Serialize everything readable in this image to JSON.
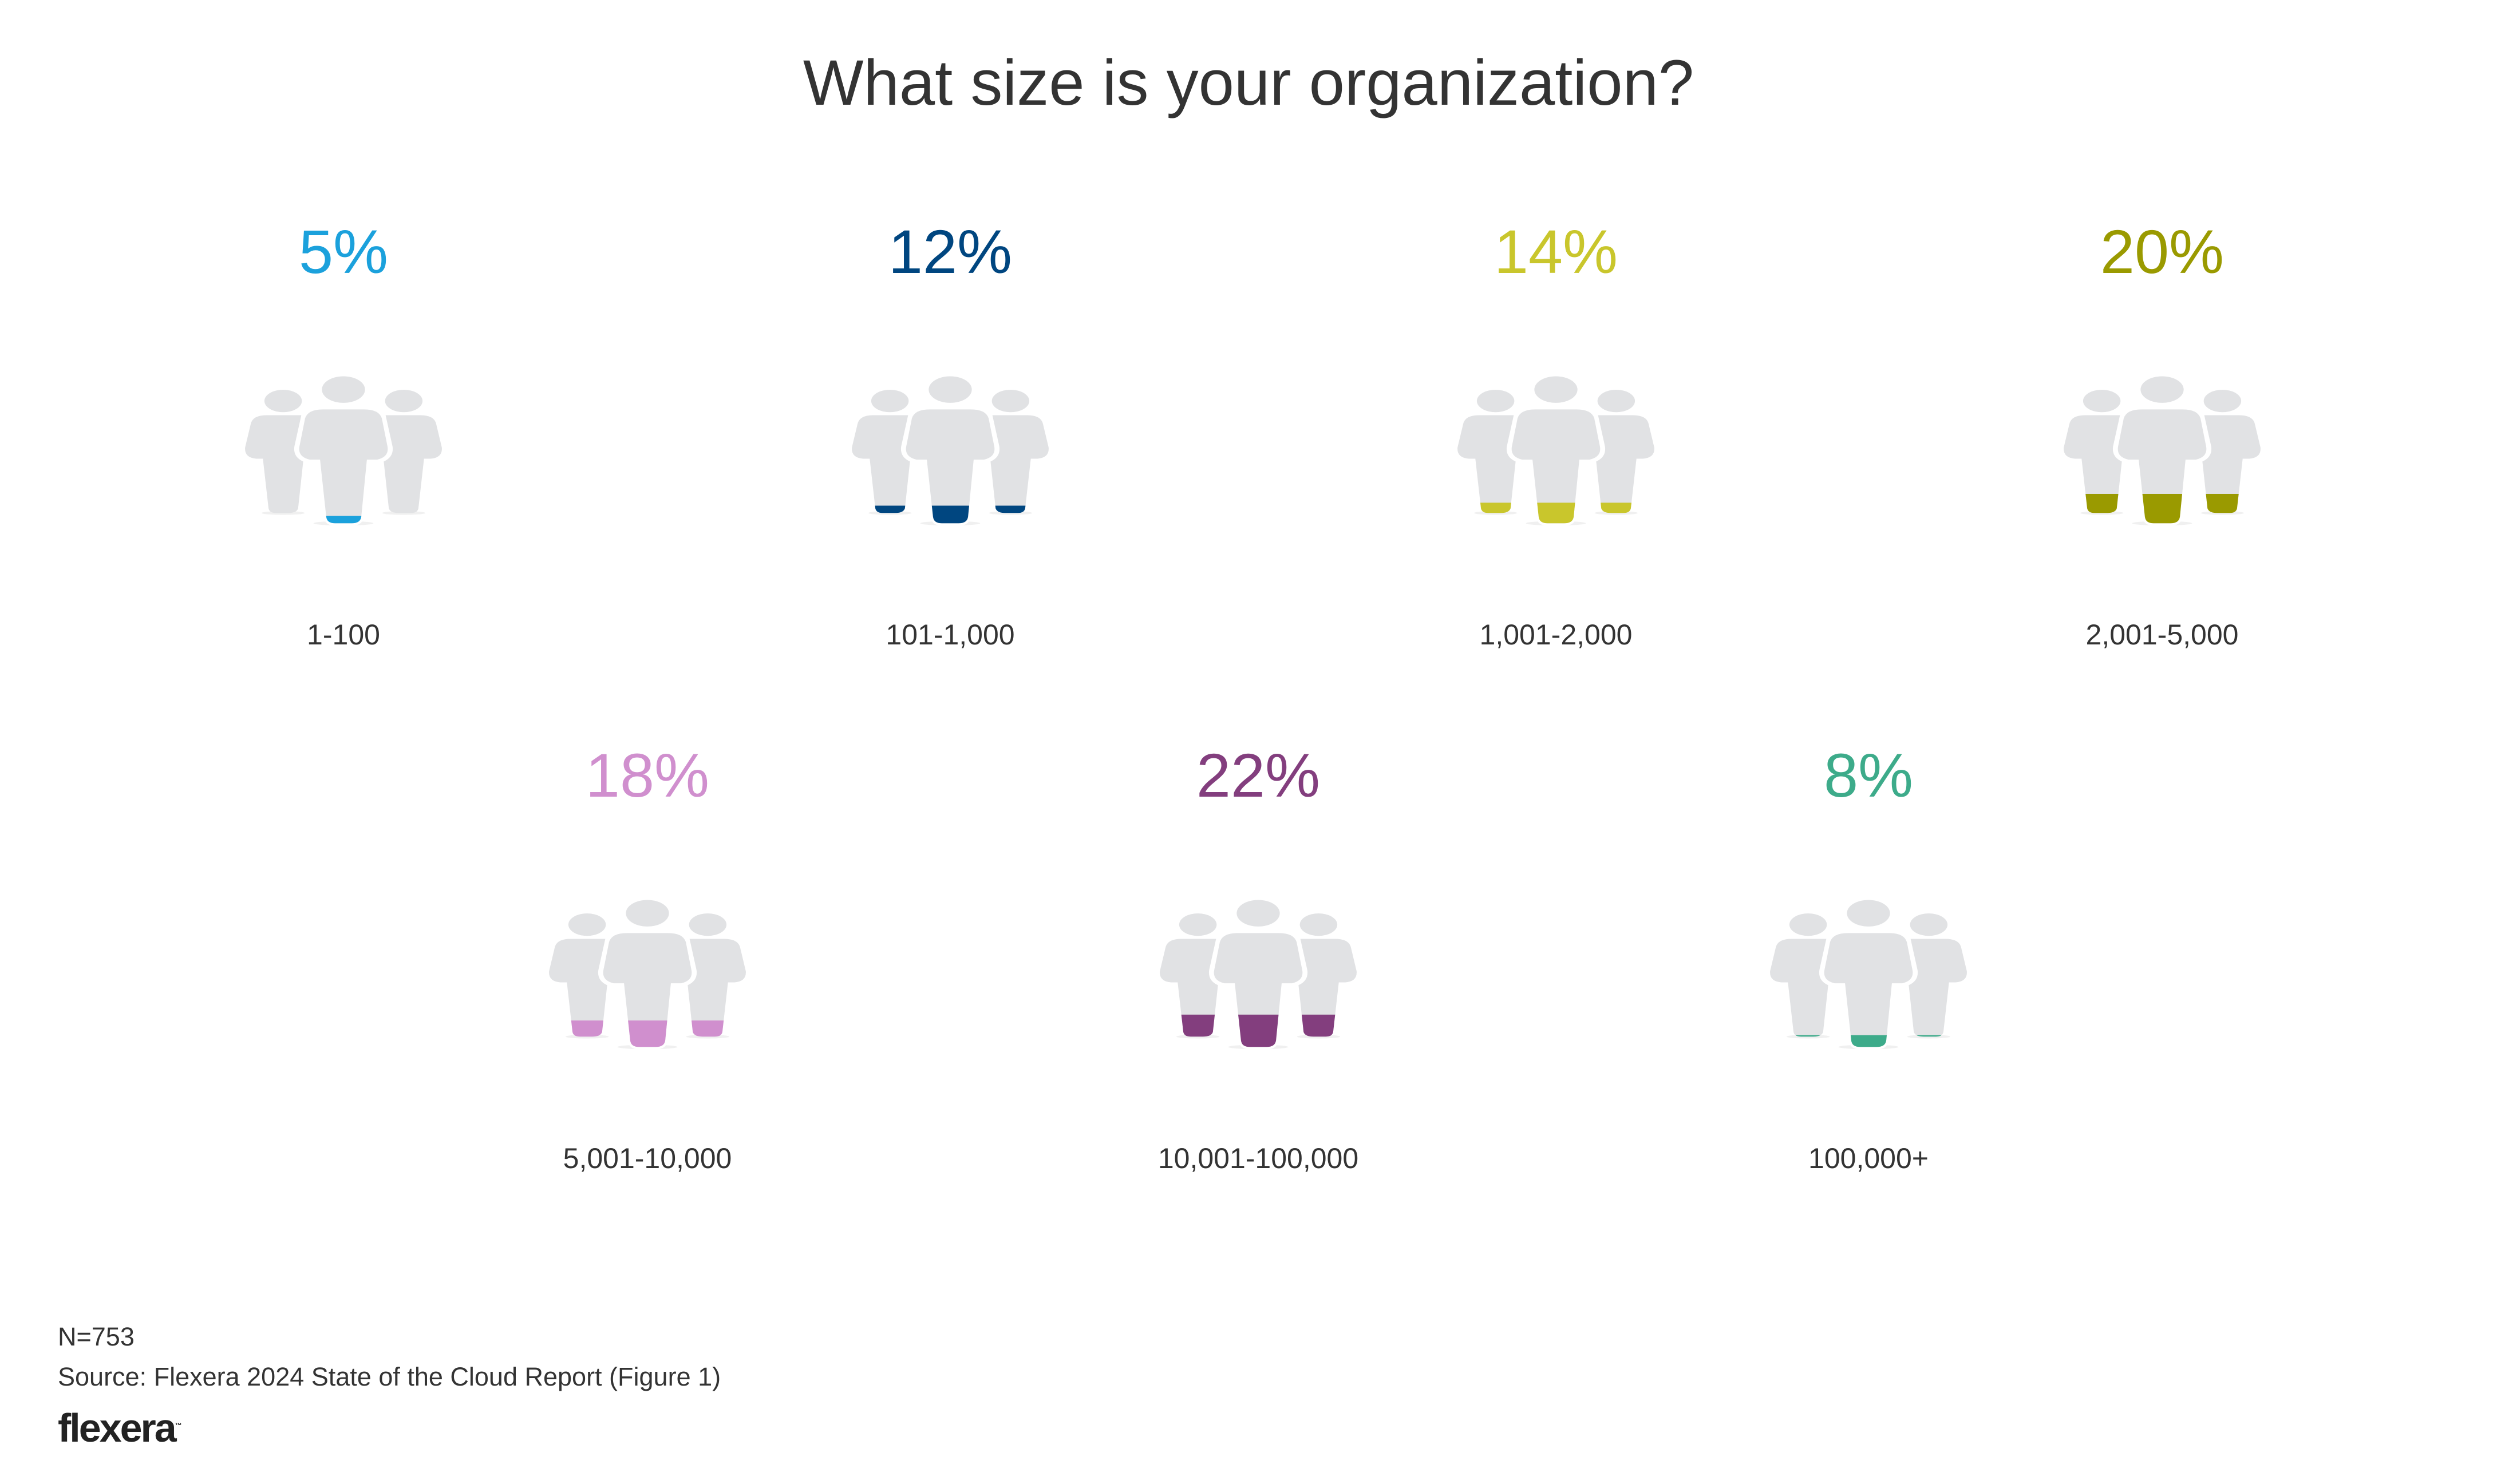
{
  "chart_data": {
    "type": "pictograph",
    "title": "What size is your organization?",
    "categories": [
      "1-100",
      "101-1,000",
      "1,001-2,000",
      "2,001-5,000",
      "5,001-10,000",
      "10,001-100,000",
      "100,000+"
    ],
    "values": [
      5,
      12,
      14,
      20,
      18,
      22,
      8
    ],
    "value_labels": [
      "5%",
      "12%",
      "14%",
      "20%",
      "18%",
      "22%",
      "8%"
    ],
    "colors": [
      "#1BA1DC",
      "#004680",
      "#C9C62C",
      "#9A9A00",
      "#D08FCE",
      "#833E7E",
      "#3DAB8A"
    ],
    "unit": "%"
  },
  "footer": {
    "n": "N=753",
    "source": "Source: Flexera 2024 State of the Cloud Report (Figure 1)",
    "logo": "flexera"
  },
  "icon_gray": "#E1E2E4"
}
